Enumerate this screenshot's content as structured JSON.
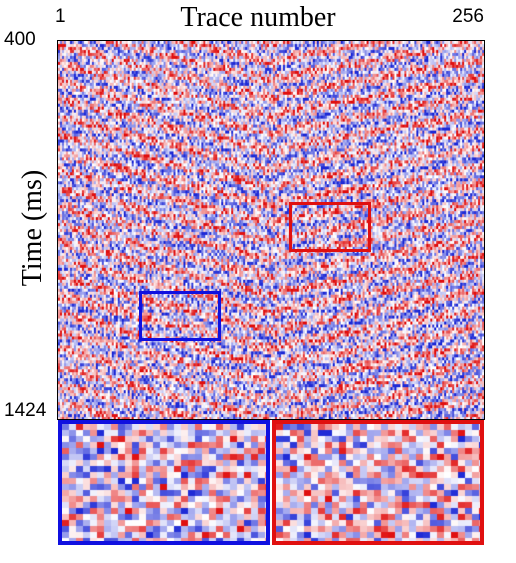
{
  "figure": {
    "title": "Trace number",
    "x_start": "1",
    "x_end": "256",
    "y_title": "Time (ms)",
    "y_start": "400",
    "y_end": "1424"
  },
  "colormap": {
    "negative": "#1f2bd6",
    "zero": "#ffffff",
    "positive": "#e01010"
  },
  "regions": {
    "blue_box_color": "#1010e0",
    "red_box_color": "#e01010"
  }
}
